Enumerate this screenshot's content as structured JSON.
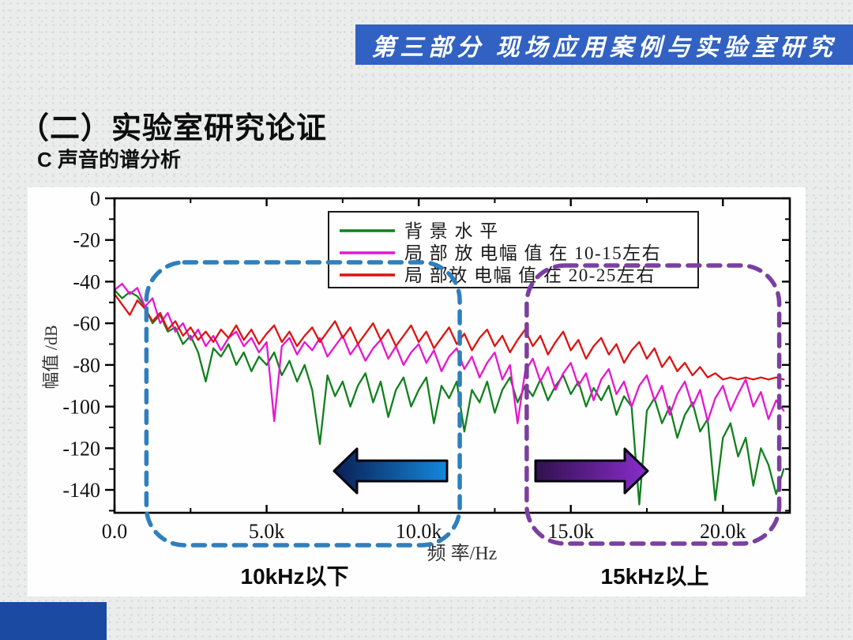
{
  "slide": {
    "banner_title": "第三部分 现场应用案例与实验室研究",
    "title": "（二）实验室研究论证",
    "subtitle": "C 声音的谱分析"
  },
  "colors": {
    "banner_bg": "#3161c2",
    "banner_text": "#ffffff",
    "corner_block": "#1b4aa3",
    "axis": "#000000",
    "low_band_box": "#2e7fbe",
    "high_band_box": "#7b3fa0",
    "low_band_arrow_gradient": [
      "#0a1e52",
      "#1488dd"
    ],
    "high_band_arrow_gradient": [
      "#31114f",
      "#8a2ccc"
    ]
  },
  "chart_data": {
    "type": "line",
    "title": "",
    "xlabel": "频 率/Hz",
    "ylabel": "幅值 /dB",
    "xlim_khz": [
      0,
      22.2
    ],
    "ylim_db": [
      -151,
      0
    ],
    "grid": false,
    "legend_position": "top-center",
    "x_step_khz": 0.25,
    "x_ticks": [
      {
        "khz": 0,
        "label": "0.0"
      },
      {
        "khz": 5,
        "label": "5.0k"
      },
      {
        "khz": 10,
        "label": "10.0k"
      },
      {
        "khz": 15,
        "label": "15.0k"
      },
      {
        "khz": 20,
        "label": "20.0k"
      }
    ],
    "x_minor_ticks_khz": [
      2.5,
      7.5,
      12.5,
      17.5
    ],
    "y_ticks": [
      {
        "db": 0,
        "label": "0"
      },
      {
        "db": -20,
        "label": "-20"
      },
      {
        "db": -40,
        "label": "-40"
      },
      {
        "db": -60,
        "label": "-60"
      },
      {
        "db": -80,
        "label": "-80"
      },
      {
        "db": -100,
        "label": "-100"
      },
      {
        "db": -120,
        "label": "-120"
      },
      {
        "db": -140,
        "label": "-140"
      }
    ],
    "y_minor_ticks_db": [
      -10,
      -30,
      -50,
      -70,
      -90,
      -110,
      -130,
      -150
    ],
    "series": [
      {
        "name": "背 景 水 平",
        "color": "#11801d",
        "values_db": [
          -44,
          -48,
          -45,
          -47,
          -52,
          -60,
          -56,
          -64,
          -62,
          -70,
          -66,
          -74,
          -88,
          -72,
          -76,
          -70,
          -80,
          -74,
          -83,
          -76,
          -80,
          -74,
          -85,
          -78,
          -88,
          -80,
          -92,
          -118,
          -85,
          -95,
          -88,
          -100,
          -90,
          -84,
          -98,
          -88,
          -105,
          -92,
          -86,
          -100,
          -92,
          -86,
          -108,
          -90,
          -96,
          -88,
          -112,
          -92,
          -98,
          -88,
          -103,
          -92,
          -86,
          -98,
          -90,
          -95,
          -87,
          -97,
          -90,
          -85,
          -94,
          -88,
          -100,
          -91,
          -97,
          -90,
          -104,
          -95,
          -100,
          -147,
          -102,
          -96,
          -108,
          -100,
          -115,
          -104,
          -98,
          -112,
          -106,
          -145,
          -115,
          -108,
          -124,
          -115,
          -138,
          -120,
          -128,
          -142,
          -130
        ]
      },
      {
        "name": "局 部 放 电幅 值 在 10-15左右",
        "color": "#e616cf",
        "values_db": [
          -44,
          -41,
          -46,
          -43,
          -52,
          -48,
          -60,
          -55,
          -64,
          -60,
          -68,
          -63,
          -71,
          -66,
          -73,
          -67,
          -64,
          -71,
          -67,
          -74,
          -69,
          -107,
          -71,
          -67,
          -75,
          -69,
          -73,
          -67,
          -76,
          -71,
          -66,
          -75,
          -70,
          -78,
          -72,
          -68,
          -77,
          -71,
          -80,
          -74,
          -70,
          -79,
          -73,
          -83,
          -76,
          -72,
          -82,
          -76,
          -86,
          -79,
          -74,
          -87,
          -80,
          -108,
          -83,
          -77,
          -88,
          -81,
          -92,
          -84,
          -79,
          -90,
          -84,
          -97,
          -87,
          -82,
          -94,
          -88,
          -100,
          -90,
          -85,
          -97,
          -90,
          -104,
          -94,
          -88,
          -100,
          -92,
          -107,
          -96,
          -90,
          -102,
          -94,
          -87,
          -100,
          -93,
          -106,
          -97,
          -102
        ]
      },
      {
        "name": "局 部放 电幅 值 在 20-25左右",
        "color": "#dc1312",
        "values_db": [
          -46,
          -51,
          -56,
          -49,
          -53,
          -59,
          -55,
          -63,
          -59,
          -66,
          -62,
          -68,
          -64,
          -69,
          -63,
          -67,
          -61,
          -68,
          -63,
          -70,
          -65,
          -61,
          -69,
          -64,
          -71,
          -66,
          -62,
          -69,
          -64,
          -59,
          -67,
          -62,
          -70,
          -65,
          -60,
          -68,
          -63,
          -71,
          -66,
          -61,
          -69,
          -64,
          -72,
          -67,
          -62,
          -70,
          -65,
          -73,
          -67,
          -63,
          -71,
          -66,
          -74,
          -68,
          -63,
          -71,
          -66,
          -75,
          -69,
          -64,
          -73,
          -68,
          -77,
          -71,
          -67,
          -75,
          -70,
          -79,
          -73,
          -69,
          -77,
          -72,
          -81,
          -76,
          -83,
          -79,
          -85,
          -81,
          -86,
          -84,
          -87,
          -86,
          -87,
          -86,
          -87,
          -86,
          -87,
          -86,
          -87
        ]
      }
    ],
    "highlight_regions": [
      {
        "label": "10kHz以下",
        "from_khz": 1.05,
        "to_khz": 11.35,
        "color": "#2e7fbe",
        "arrow_direction": "left"
      },
      {
        "label": "15kHz以上",
        "from_khz": 13.55,
        "to_khz": 21.85,
        "color": "#7b3fa0",
        "arrow_direction": "right"
      }
    ]
  }
}
